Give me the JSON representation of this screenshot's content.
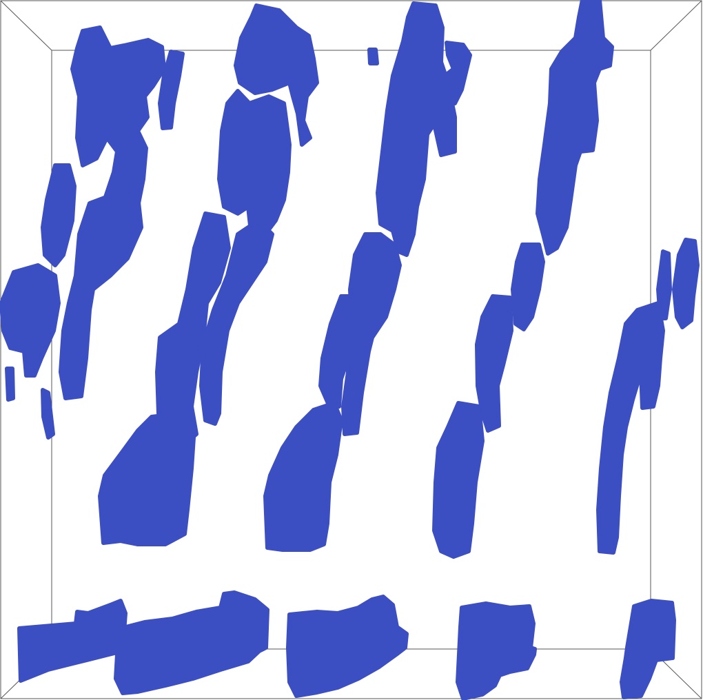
{
  "scene": {
    "kind": "3d-isosurface-render",
    "blob_color": "#3b4ec2",
    "background_color": "#ffffff",
    "bounding_box_color": "#555555"
  }
}
